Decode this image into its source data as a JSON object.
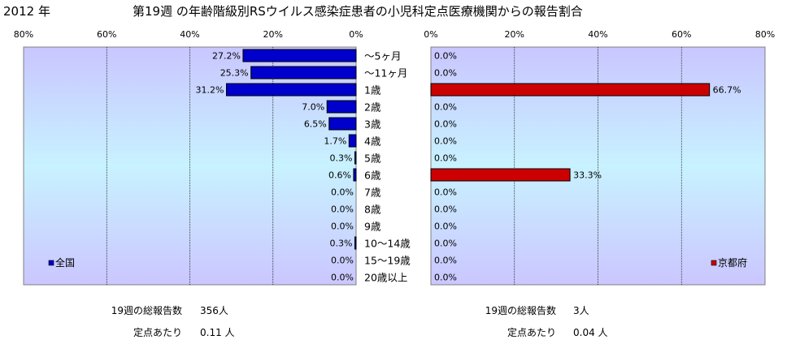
{
  "header": {
    "year": "2012 年",
    "title": "第19週 の年齢階級別RSウイルス感染症患者の小児科定点医療機関からの報告割合"
  },
  "chart_data": {
    "type": "bar",
    "orientation": "horizontal",
    "categories": [
      "～5ヶ月",
      "～11ヶ月",
      "1歳",
      "2歳",
      "3歳",
      "4歳",
      "5歳",
      "6歳",
      "7歳",
      "8歳",
      "9歳",
      "10～14歳",
      "15～19歳",
      "20歳以上"
    ],
    "panels": [
      {
        "legend": "全国",
        "legend_position": "bottom-left",
        "direction": "leftward",
        "axis_ticks": [
          "80%",
          "60%",
          "40%",
          "20%",
          "0%"
        ],
        "xlim": [
          0,
          80
        ],
        "color": "#0000cc",
        "values": [
          27.2,
          25.3,
          31.2,
          7.0,
          6.5,
          1.7,
          0.3,
          0.6,
          0.0,
          0.0,
          0.0,
          0.3,
          0.0,
          0.0
        ],
        "value_labels": [
          "27.2%",
          "25.3%",
          "31.2%",
          "7.0%",
          "6.5%",
          "1.7%",
          "0.3%",
          "0.6%",
          "0.0%",
          "0.0%",
          "0.0%",
          "0.3%",
          "0.0%",
          "0.0%"
        ]
      },
      {
        "legend": "京都府",
        "legend_position": "bottom-right",
        "direction": "rightward",
        "axis_ticks": [
          "0%",
          "20%",
          "40%",
          "60%",
          "80%"
        ],
        "xlim": [
          0,
          80
        ],
        "color": "#cc0000",
        "values": [
          0.0,
          0.0,
          66.7,
          0.0,
          0.0,
          0.0,
          0.0,
          33.3,
          0.0,
          0.0,
          0.0,
          0.0,
          0.0,
          0.0
        ],
        "value_labels": [
          "0.0%",
          "0.0%",
          "66.7%",
          "0.0%",
          "0.0%",
          "0.0%",
          "0.0%",
          "33.3%",
          "0.0%",
          "0.0%",
          "0.0%",
          "0.0%",
          "0.0%",
          "0.0%"
        ]
      }
    ],
    "grid": true
  },
  "footer": {
    "left": {
      "total_label": "19週の総報告数",
      "total_value": "356人",
      "per_label": "定点あたり",
      "per_value": "0.11 人"
    },
    "right": {
      "total_label": "19週の総報告数",
      "total_value": "3人",
      "per_label": "定点あたり",
      "per_value": "0.04 人"
    }
  }
}
